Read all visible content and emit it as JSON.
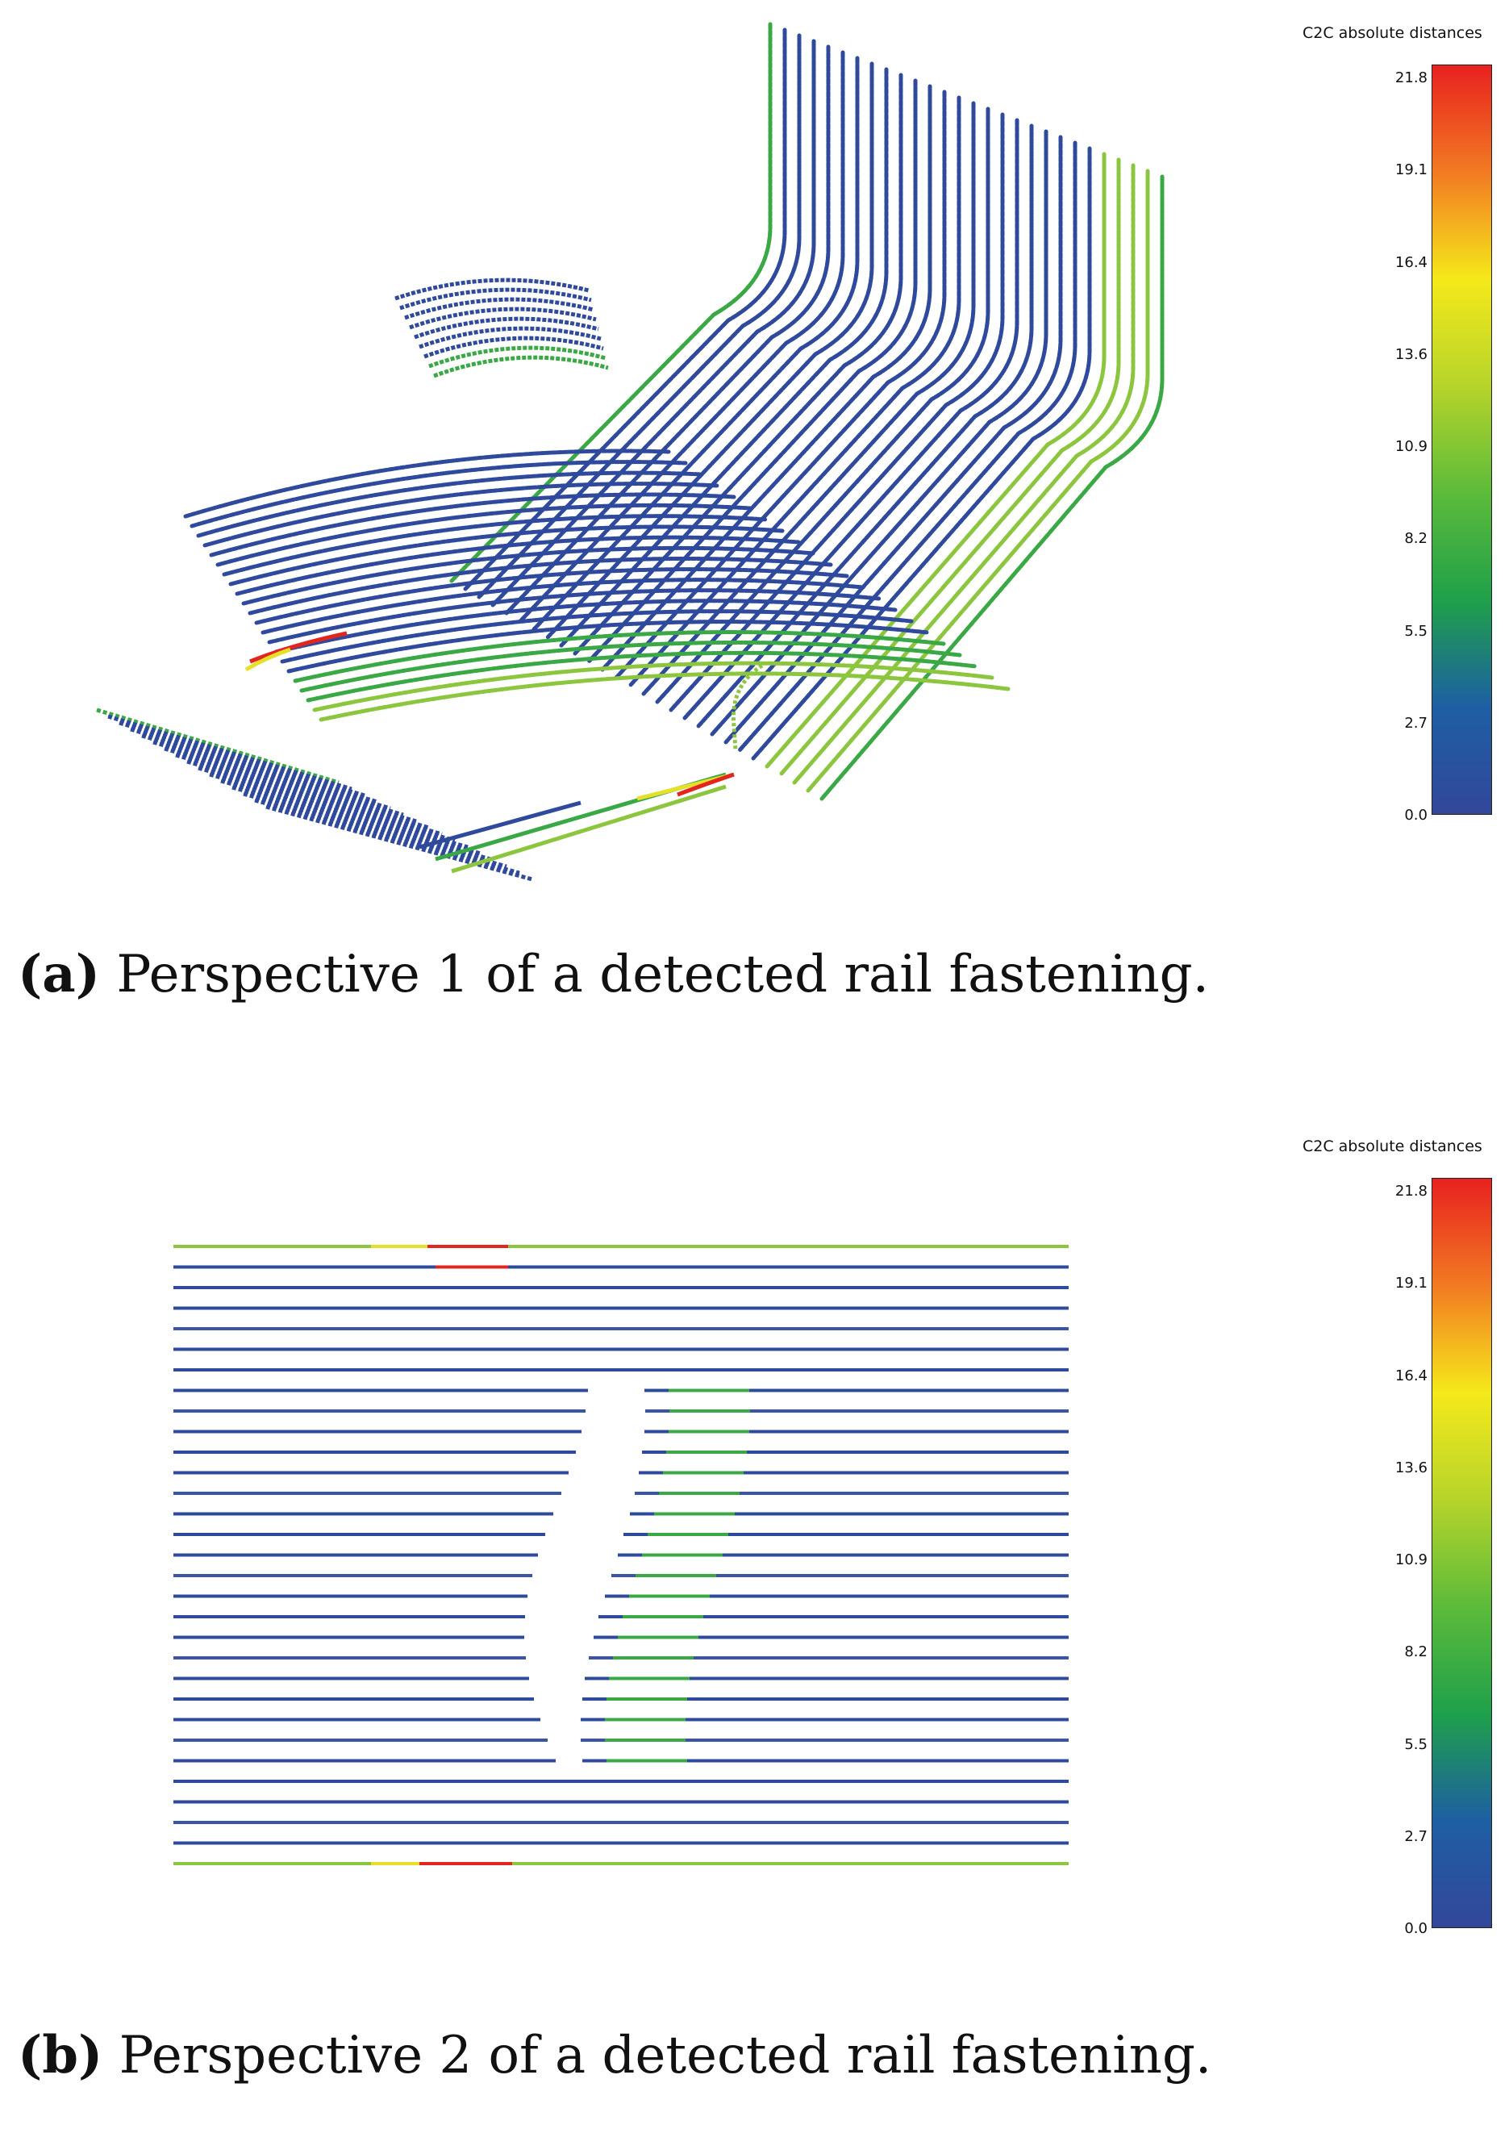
{
  "colorbar": {
    "title": "C2C absolute distances",
    "ticks": [
      "21.8",
      "19.1",
      "16.4",
      "13.6",
      "10.9",
      "8.2",
      "5.5",
      "2.7",
      "0.0"
    ],
    "colors": [
      "#e8211f",
      "#f27a22",
      "#f5e91a",
      "#b6d42a",
      "#5cbb3a",
      "#1fa04a",
      "#1e5fa3",
      "#33479a"
    ]
  },
  "panels": [
    {
      "label": "(a)",
      "caption": "Perspective 1 of a detected rail fastening."
    },
    {
      "label": "(b)",
      "caption": "Perspective 2 of a detected rail fastening."
    }
  ]
}
